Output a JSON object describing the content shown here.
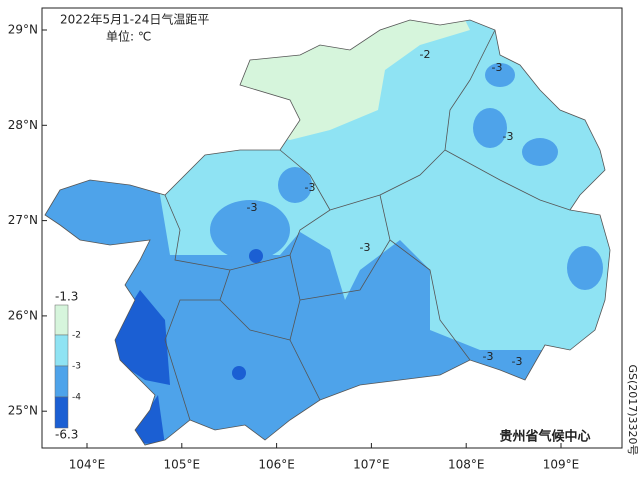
{
  "title": "2022年5月1-24日气温距平",
  "unit": "单位: ℃",
  "lat_ticks": [
    {
      "value": 29,
      "label": "29°N"
    },
    {
      "value": 28,
      "label": "28°N"
    },
    {
      "value": 27,
      "label": "27°N"
    },
    {
      "value": 26,
      "label": "26°N"
    },
    {
      "value": 25,
      "label": "25°N"
    }
  ],
  "lon_ticks": [
    {
      "value": 104,
      "label": "104°E"
    },
    {
      "value": 105,
      "label": "105°E"
    },
    {
      "value": 106,
      "label": "106°E"
    },
    {
      "value": 107,
      "label": "107°E"
    },
    {
      "value": 108,
      "label": "108°E"
    },
    {
      "value": 109,
      "label": "109°E"
    }
  ],
  "legend": {
    "labels": [
      "-1.3",
      "-2",
      "-3",
      "-4",
      "-6.3"
    ],
    "colors": [
      "#d6f5dc",
      "#8fe3f3",
      "#4ea3ea",
      "#1b5fd3"
    ]
  },
  "contour_labels": [
    "-2",
    "-3",
    "-3",
    "-3",
    "-3",
    "-3",
    "-3",
    "-3"
  ],
  "source": "贵州省气候中心",
  "approval": "GS(2017)3320号"
}
